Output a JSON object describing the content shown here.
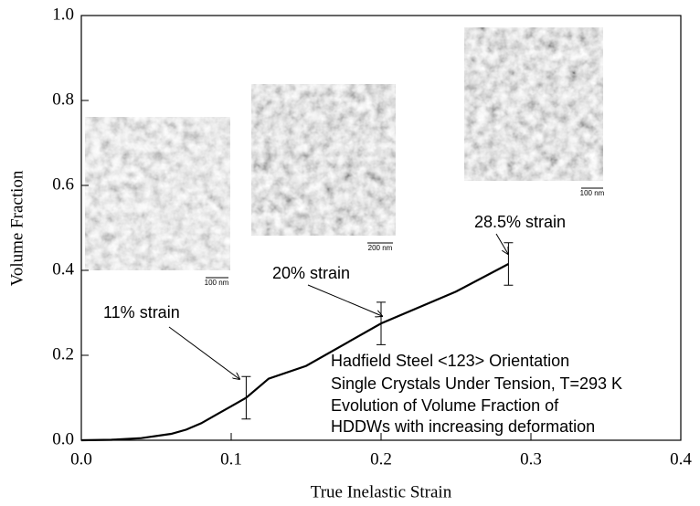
{
  "chart_data": {
    "type": "line",
    "xlabel": "True Inelastic Strain",
    "ylabel": "Volume Fraction",
    "x": [
      0,
      0.02,
      0.04,
      0.06,
      0.07,
      0.08,
      0.09,
      0.1,
      0.11,
      0.12,
      0.125,
      0.15,
      0.2,
      0.25,
      0.285
    ],
    "values": [
      0,
      0.001,
      0.005,
      0.015,
      0.025,
      0.04,
      0.06,
      0.08,
      0.1,
      0.13,
      0.145,
      0.175,
      0.275,
      0.35,
      0.415
    ],
    "color": "#000000",
    "error_bars": {
      "x": [
        0.11,
        0.2,
        0.285
      ],
      "values": [
        0.1,
        0.275,
        0.415
      ],
      "errors": [
        0.05,
        0.05,
        0.05
      ]
    },
    "xlim": [
      0,
      0.4
    ],
    "ylim": [
      0,
      1
    ],
    "xticks": [
      {
        "value": 0,
        "label": "0.0"
      },
      0.1,
      0.2,
      0.3,
      0.4
    ],
    "yticks": [
      {
        "value": 0,
        "label": "0.0"
      },
      0.2,
      0.4,
      0.6,
      0.8,
      {
        "value": 1,
        "label": "1.0"
      }
    ],
    "annotations": [
      "11% strain",
      "20% strain",
      "28.5% strain"
    ],
    "note_lines": [
      "Hadfield Steel <123> Orientation",
      "Single Crystals Under Tension, T=293 K",
      "Evolution of Volume Fraction of",
      "HDDWs with increasing deformation"
    ],
    "scale_bars": [
      "100 nm",
      "200 nm",
      "100 nm"
    ]
  }
}
